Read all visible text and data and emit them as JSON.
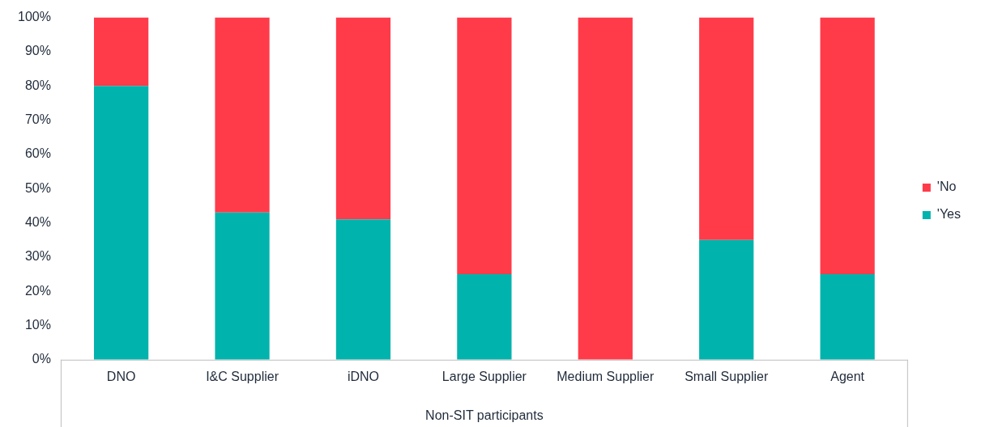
{
  "chart_data": {
    "type": "bar",
    "stacked": true,
    "xlabel": "Non-SIT participants",
    "categories": [
      "DNO",
      "I&C Supplier",
      "iDNO",
      "Large Supplier",
      "Medium Supplier",
      "Small Supplier",
      "Agent"
    ],
    "series": [
      {
        "name": "'Yes",
        "color": "#00b3ac",
        "values": [
          80,
          43,
          41,
          25,
          0,
          35,
          25
        ]
      },
      {
        "name": "'No",
        "color": "#ff3b4a",
        "values": [
          20,
          57,
          59,
          75,
          100,
          65,
          75
        ]
      }
    ],
    "ylim": [
      0,
      100
    ],
    "yticks": [
      {
        "value": 0,
        "label": "0%"
      },
      {
        "value": 10,
        "label": "10%"
      },
      {
        "value": 20,
        "label": "20%"
      },
      {
        "value": 30,
        "label": "30%"
      },
      {
        "value": 40,
        "label": "40%"
      },
      {
        "value": 50,
        "label": "50%"
      },
      {
        "value": 60,
        "label": "60%"
      },
      {
        "value": 70,
        "label": "70%"
      },
      {
        "value": 80,
        "label": "80%"
      },
      {
        "value": 90,
        "label": "90%"
      },
      {
        "value": 100,
        "label": "100%"
      }
    ],
    "grid": false,
    "legend": "right"
  }
}
